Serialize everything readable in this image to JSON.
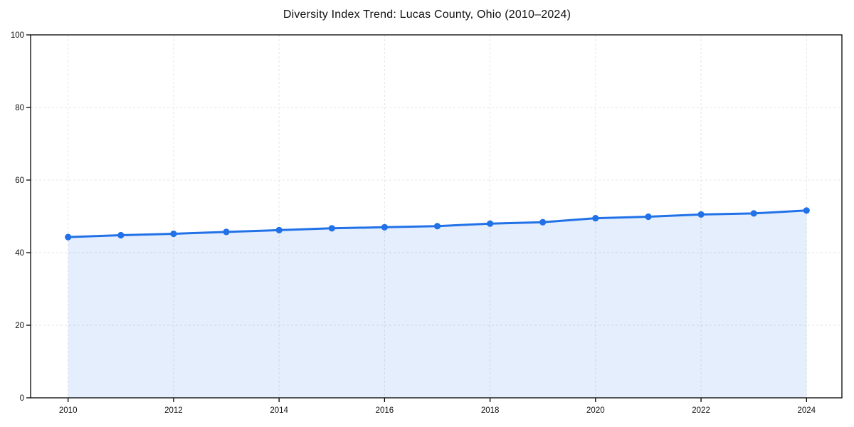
{
  "chart_data": {
    "type": "line",
    "title": "Diversity Index Trend: Lucas County, Ohio (2010–2024)",
    "xlabel": "",
    "ylabel": "",
    "x": [
      2010,
      2011,
      2012,
      2013,
      2014,
      2015,
      2016,
      2017,
      2018,
      2019,
      2020,
      2021,
      2022,
      2023,
      2024
    ],
    "values": [
      44.3,
      44.8,
      45.2,
      45.7,
      46.2,
      46.7,
      47.0,
      47.3,
      48.0,
      48.4,
      49.5,
      49.9,
      50.5,
      50.8,
      51.6
    ],
    "ylim": [
      0,
      100
    ],
    "yticks": [
      0,
      20,
      40,
      60,
      80,
      100
    ],
    "xticks": [
      2010,
      2012,
      2014,
      2016,
      2018,
      2020,
      2022,
      2024
    ],
    "grid": true,
    "grid_style": "dashed",
    "legend": false,
    "area_fill": true,
    "marker": "circle",
    "colors": {
      "line": "#2171e8",
      "fill": "rgba(33,113,232,0.12)",
      "grid": "#e4e4e4",
      "axis": "#000000",
      "text": "#111111",
      "background": "#ffffff"
    }
  }
}
